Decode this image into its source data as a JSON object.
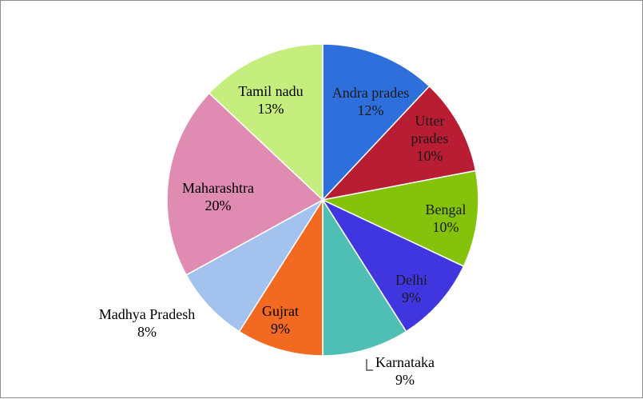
{
  "chart_data": {
    "type": "pie",
    "title": "",
    "start_angle_deg": 0,
    "direction": "clockwise",
    "slices": [
      {
        "label": "Andra prades",
        "value": 12,
        "percent_label": "12%",
        "color": "#2e6fdc",
        "label_color": "#1a1a1a"
      },
      {
        "label": "Utter prades",
        "value": 10,
        "percent_label": "10%",
        "color": "#b81d33",
        "label_color": "#1a1a1a"
      },
      {
        "label": "Bengal",
        "value": 10,
        "percent_label": "10%",
        "color": "#84c20c",
        "label_color": "#1a1a1a"
      },
      {
        "label": "Delhi",
        "value": 9,
        "percent_label": "9%",
        "color": "#3f36e0",
        "label_color": "#1a1a1a"
      },
      {
        "label": "Karnataka",
        "value": 9,
        "percent_label": "9%",
        "color": "#4fbeb4",
        "label_color": "#000000"
      },
      {
        "label": "Gujrat",
        "value": 9,
        "percent_label": "9%",
        "color": "#f26a21",
        "label_color": "#000000"
      },
      {
        "label": "Madhya Pradesh",
        "value": 8,
        "percent_label": "8%",
        "color": "#a4c2ee",
        "label_color": "#000000"
      },
      {
        "label": "Maharashtra",
        "value": 20,
        "percent_label": "20%",
        "color": "#e08bb2",
        "label_color": "#000000"
      },
      {
        "label": "Tamil nadu",
        "value": 13,
        "percent_label": "13%",
        "color": "#c6ee7e",
        "label_color": "#000000"
      }
    ],
    "legend": "none"
  }
}
